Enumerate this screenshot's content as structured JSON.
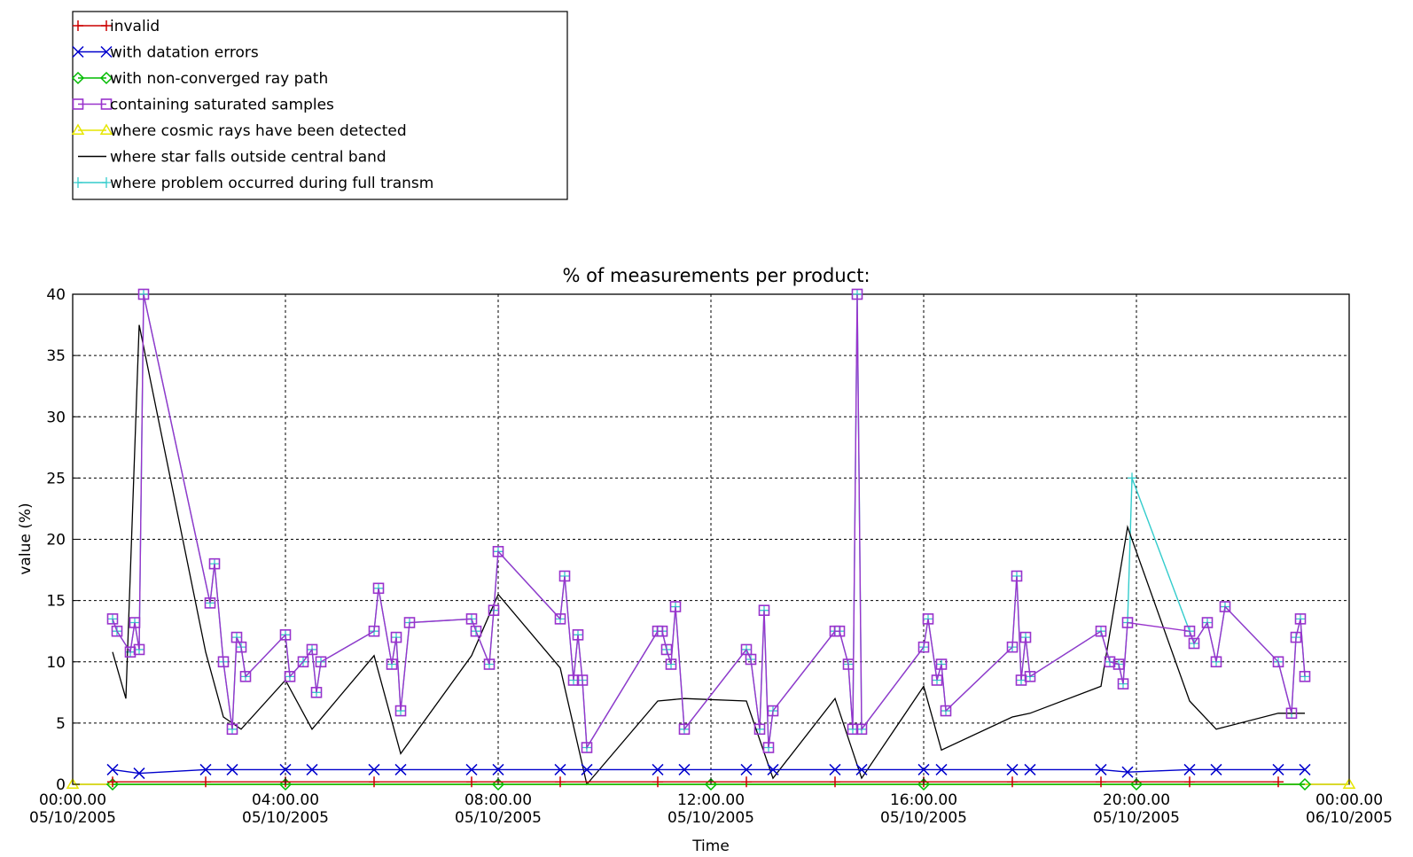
{
  "chart_data": {
    "type": "line",
    "title": "% of measurements per product:",
    "xlabel": "Time",
    "ylabel": "value (%)",
    "ylim": [
      0,
      40
    ],
    "xlim": [
      "2005-10-05 00:00",
      "2005-10-06 00:00"
    ],
    "grid": true,
    "legend_position": "top-left",
    "yticks": [
      "0",
      "5",
      "10",
      "15",
      "20",
      "25",
      "30",
      "35",
      "40"
    ],
    "xticks": [
      {
        "time": "00:00.00",
        "date": "05/10/2005"
      },
      {
        "time": "04:00.00",
        "date": "05/10/2005"
      },
      {
        "time": "08:00.00",
        "date": "05/10/2005"
      },
      {
        "time": "12:00.00",
        "date": "05/10/2005"
      },
      {
        "time": "16:00.00",
        "date": "05/10/2005"
      },
      {
        "time": "20:00.00",
        "date": "05/10/2005"
      },
      {
        "time": "00:00.00",
        "date": "06/10/2005"
      }
    ],
    "series": [
      {
        "name": "invalid",
        "color": "#cc0000",
        "marker": "plus",
        "x": [
          "2005-10-05 00:45",
          "2005-10-05 02:30",
          "2005-10-05 04:00",
          "2005-10-05 05:40",
          "2005-10-05 07:30",
          "2005-10-05 09:10",
          "2005-10-05 11:00",
          "2005-10-05 12:40",
          "2005-10-05 14:20",
          "2005-10-05 16:00",
          "2005-10-05 17:40",
          "2005-10-05 19:20",
          "2005-10-05 21:00",
          "2005-10-05 22:40"
        ],
        "y": [
          0.2,
          0.2,
          0.2,
          0.2,
          0.2,
          0.2,
          0.2,
          0.2,
          0.2,
          0.2,
          0.2,
          0.2,
          0.2,
          0.2
        ]
      },
      {
        "name": "with datation errors",
        "color": "#0000cc",
        "marker": "x",
        "x": [
          "2005-10-05 00:45",
          "2005-10-05 01:15",
          "2005-10-05 02:30",
          "2005-10-05 03:00",
          "2005-10-05 04:00",
          "2005-10-05 04:30",
          "2005-10-05 05:40",
          "2005-10-05 06:10",
          "2005-10-05 07:30",
          "2005-10-05 08:00",
          "2005-10-05 09:10",
          "2005-10-05 09:40",
          "2005-10-05 11:00",
          "2005-10-05 11:30",
          "2005-10-05 12:40",
          "2005-10-05 13:10",
          "2005-10-05 14:20",
          "2005-10-05 14:50",
          "2005-10-05 16:00",
          "2005-10-05 16:20",
          "2005-10-05 17:40",
          "2005-10-05 18:00",
          "2005-10-05 19:20",
          "2005-10-05 19:50",
          "2005-10-05 21:00",
          "2005-10-05 21:30",
          "2005-10-05 22:40",
          "2005-10-05 23:10"
        ],
        "y": [
          1.2,
          0.9,
          1.2,
          1.2,
          1.2,
          1.2,
          1.2,
          1.2,
          1.2,
          1.2,
          1.2,
          1.2,
          1.2,
          1.2,
          1.2,
          1.2,
          1.2,
          1.2,
          1.2,
          1.2,
          1.2,
          1.2,
          1.2,
          1.0,
          1.2,
          1.2,
          1.2,
          1.2
        ]
      },
      {
        "name": "with non-converged ray path",
        "color": "#00bb00",
        "marker": "diamond",
        "x": [
          "2005-10-05 00:45",
          "2005-10-05 04:00",
          "2005-10-05 08:00",
          "2005-10-05 12:00",
          "2005-10-05 16:00",
          "2005-10-05 20:00",
          "2005-10-05 23:10"
        ],
        "y": [
          0,
          0,
          0,
          0,
          0,
          0,
          0
        ]
      },
      {
        "name": "containing saturated samples",
        "color": "#9933cc",
        "marker": "square",
        "x": [
          "2005-10-05 00:45",
          "2005-10-05 00:50",
          "2005-10-05 01:05",
          "2005-10-05 01:10",
          "2005-10-05 01:15",
          "2005-10-05 01:20",
          "2005-10-05 02:35",
          "2005-10-05 02:40",
          "2005-10-05 02:50",
          "2005-10-05 03:00",
          "2005-10-05 03:05",
          "2005-10-05 03:10",
          "2005-10-05 03:15",
          "2005-10-05 04:00",
          "2005-10-05 04:05",
          "2005-10-05 04:20",
          "2005-10-05 04:30",
          "2005-10-05 04:35",
          "2005-10-05 04:40",
          "2005-10-05 05:40",
          "2005-10-05 05:45",
          "2005-10-05 06:00",
          "2005-10-05 06:05",
          "2005-10-05 06:10",
          "2005-10-05 06:20",
          "2005-10-05 07:30",
          "2005-10-05 07:35",
          "2005-10-05 07:50",
          "2005-10-05 07:55",
          "2005-10-05 08:00",
          "2005-10-05 09:10",
          "2005-10-05 09:15",
          "2005-10-05 09:25",
          "2005-10-05 09:30",
          "2005-10-05 09:35",
          "2005-10-05 09:40",
          "2005-10-05 11:00",
          "2005-10-05 11:05",
          "2005-10-05 11:10",
          "2005-10-05 11:15",
          "2005-10-05 11:20",
          "2005-10-05 11:30",
          "2005-10-05 12:40",
          "2005-10-05 12:45",
          "2005-10-05 12:55",
          "2005-10-05 13:00",
          "2005-10-05 13:05",
          "2005-10-05 13:10",
          "2005-10-05 14:20",
          "2005-10-05 14:25",
          "2005-10-05 14:35",
          "2005-10-05 14:40",
          "2005-10-05 14:45",
          "2005-10-05 14:50",
          "2005-10-05 16:00",
          "2005-10-05 16:05",
          "2005-10-05 16:15",
          "2005-10-05 16:20",
          "2005-10-05 16:25",
          "2005-10-05 17:40",
          "2005-10-05 17:45",
          "2005-10-05 17:50",
          "2005-10-05 17:55",
          "2005-10-05 18:00",
          "2005-10-05 19:20",
          "2005-10-05 19:30",
          "2005-10-05 19:40",
          "2005-10-05 19:45",
          "2005-10-05 19:50",
          "2005-10-05 21:00",
          "2005-10-05 21:05",
          "2005-10-05 21:20",
          "2005-10-05 21:30",
          "2005-10-05 21:40",
          "2005-10-05 22:40",
          "2005-10-05 22:55",
          "2005-10-05 23:00",
          "2005-10-05 23:05",
          "2005-10-05 23:10"
        ],
        "y": [
          13.5,
          12.5,
          10.8,
          13.2,
          11.0,
          40.0,
          14.8,
          18.0,
          10.0,
          4.5,
          12.0,
          11.2,
          8.8,
          12.2,
          8.8,
          10.0,
          11.0,
          7.5,
          10.0,
          12.5,
          16.0,
          9.8,
          12.0,
          6.0,
          13.2,
          13.5,
          12.5,
          9.8,
          14.2,
          19.0,
          13.5,
          17.0,
          8.5,
          12.2,
          8.5,
          3.0,
          12.5,
          12.5,
          11.0,
          9.8,
          14.5,
          4.5,
          11.0,
          10.2,
          4.5,
          14.2,
          3.0,
          6.0,
          12.5,
          12.5,
          9.8,
          4.5,
          40.0,
          4.5,
          11.2,
          13.5,
          8.5,
          9.8,
          6.0,
          11.2,
          17.0,
          8.5,
          12.0,
          8.8,
          12.5,
          10.0,
          9.8,
          8.2,
          13.2,
          12.5,
          11.5,
          13.2,
          10.0,
          14.5,
          10.0,
          5.8,
          12.0,
          13.5,
          8.8
        ],
        "note_peaks": [
          40.0,
          40.0,
          25.0
        ]
      },
      {
        "name": "where cosmic rays have been detected",
        "color": "#e6e600",
        "marker": "triangle",
        "x": [
          "2005-10-05 00:00",
          "2005-10-06 00:00"
        ],
        "y": [
          0,
          0
        ]
      },
      {
        "name": "where star falls outside central band",
        "color": "#000000",
        "marker": "none",
        "x": [
          "2005-10-05 00:45",
          "2005-10-05 01:00",
          "2005-10-05 01:15",
          "2005-10-05 02:30",
          "2005-10-05 02:50",
          "2005-10-05 03:10",
          "2005-10-05 04:00",
          "2005-10-05 04:30",
          "2005-10-05 05:40",
          "2005-10-05 06:10",
          "2005-10-05 07:30",
          "2005-10-05 08:00",
          "2005-10-05 09:10",
          "2005-10-05 09:40",
          "2005-10-05 11:00",
          "2005-10-05 11:30",
          "2005-10-05 12:40",
          "2005-10-05 13:10",
          "2005-10-05 14:20",
          "2005-10-05 14:50",
          "2005-10-05 16:00",
          "2005-10-05 16:20",
          "2005-10-05 17:40",
          "2005-10-05 18:00",
          "2005-10-05 19:20",
          "2005-10-05 19:50",
          "2005-10-05 21:00",
          "2005-10-05 21:30",
          "2005-10-05 22:40",
          "2005-10-05 23:10"
        ],
        "y": [
          10.8,
          7.0,
          37.5,
          10.8,
          5.5,
          4.5,
          8.5,
          4.5,
          10.5,
          2.5,
          10.5,
          15.5,
          9.5,
          0.0,
          6.8,
          7.0,
          6.8,
          0.5,
          7.0,
          0.5,
          8.0,
          2.8,
          5.5,
          5.8,
          8.0,
          21.0,
          6.8,
          4.5,
          5.8,
          5.8
        ]
      },
      {
        "name": "where problem occurred during full transm",
        "color": "#33cccc",
        "marker": "cap",
        "x": [
          "2005-10-05 00:45",
          "2005-10-05 00:50",
          "2005-10-05 01:05",
          "2005-10-05 01:10",
          "2005-10-05 01:15",
          "2005-10-05 01:20",
          "2005-10-05 02:35",
          "2005-10-05 02:40",
          "2005-10-05 02:50",
          "2005-10-05 03:00",
          "2005-10-05 03:05",
          "2005-10-05 03:10",
          "2005-10-05 03:15",
          "2005-10-05 04:00",
          "2005-10-05 04:05",
          "2005-10-05 04:20",
          "2005-10-05 04:30",
          "2005-10-05 04:35",
          "2005-10-05 04:40",
          "2005-10-05 05:40",
          "2005-10-05 05:45",
          "2005-10-05 06:00",
          "2005-10-05 06:05",
          "2005-10-05 06:10",
          "2005-10-05 06:20",
          "2005-10-05 07:30",
          "2005-10-05 07:35",
          "2005-10-05 07:50",
          "2005-10-05 07:55",
          "2005-10-05 08:00",
          "2005-10-05 09:10",
          "2005-10-05 09:15",
          "2005-10-05 09:25",
          "2005-10-05 09:30",
          "2005-10-05 09:35",
          "2005-10-05 09:40",
          "2005-10-05 11:00",
          "2005-10-05 11:05",
          "2005-10-05 11:10",
          "2005-10-05 11:15",
          "2005-10-05 11:20",
          "2005-10-05 11:30",
          "2005-10-05 12:40",
          "2005-10-05 12:45",
          "2005-10-05 12:55",
          "2005-10-05 13:00",
          "2005-10-05 13:05",
          "2005-10-05 13:10",
          "2005-10-05 14:20",
          "2005-10-05 14:25",
          "2005-10-05 14:35",
          "2005-10-05 14:40",
          "2005-10-05 14:45",
          "2005-10-05 14:50",
          "2005-10-05 16:00",
          "2005-10-05 16:05",
          "2005-10-05 16:15",
          "2005-10-05 16:20",
          "2005-10-05 16:25",
          "2005-10-05 17:40",
          "2005-10-05 17:45",
          "2005-10-05 17:50",
          "2005-10-05 17:55",
          "2005-10-05 18:00",
          "2005-10-05 19:20",
          "2005-10-05 19:30",
          "2005-10-05 19:40",
          "2005-10-05 19:45",
          "2005-10-05 19:50",
          "2005-10-05 19:55",
          "2005-10-05 21:00",
          "2005-10-05 21:05",
          "2005-10-05 21:20",
          "2005-10-05 21:30",
          "2005-10-05 21:40",
          "2005-10-05 22:40",
          "2005-10-05 22:55",
          "2005-10-05 23:00",
          "2005-10-05 23:05",
          "2005-10-05 23:10"
        ],
        "y": [
          13.5,
          12.5,
          10.8,
          13.2,
          11.0,
          40.0,
          14.8,
          18.0,
          10.0,
          4.5,
          12.0,
          11.2,
          8.8,
          12.2,
          8.8,
          10.0,
          11.0,
          7.5,
          10.0,
          12.5,
          16.0,
          9.8,
          12.0,
          6.0,
          13.2,
          13.5,
          12.5,
          9.8,
          14.2,
          19.0,
          13.5,
          17.0,
          8.5,
          12.2,
          8.5,
          3.0,
          12.5,
          12.5,
          11.0,
          9.8,
          14.5,
          4.5,
          11.0,
          10.2,
          4.5,
          14.2,
          3.0,
          6.0,
          12.5,
          12.5,
          9.8,
          4.5,
          40.0,
          4.5,
          11.2,
          13.5,
          8.5,
          9.8,
          6.0,
          11.2,
          17.0,
          8.5,
          12.0,
          8.8,
          12.5,
          10.0,
          9.8,
          8.2,
          13.2,
          25.0,
          12.5,
          11.5,
          13.2,
          10.0,
          14.5,
          10.0,
          5.8,
          12.0,
          13.5,
          8.8
        ]
      }
    ]
  }
}
